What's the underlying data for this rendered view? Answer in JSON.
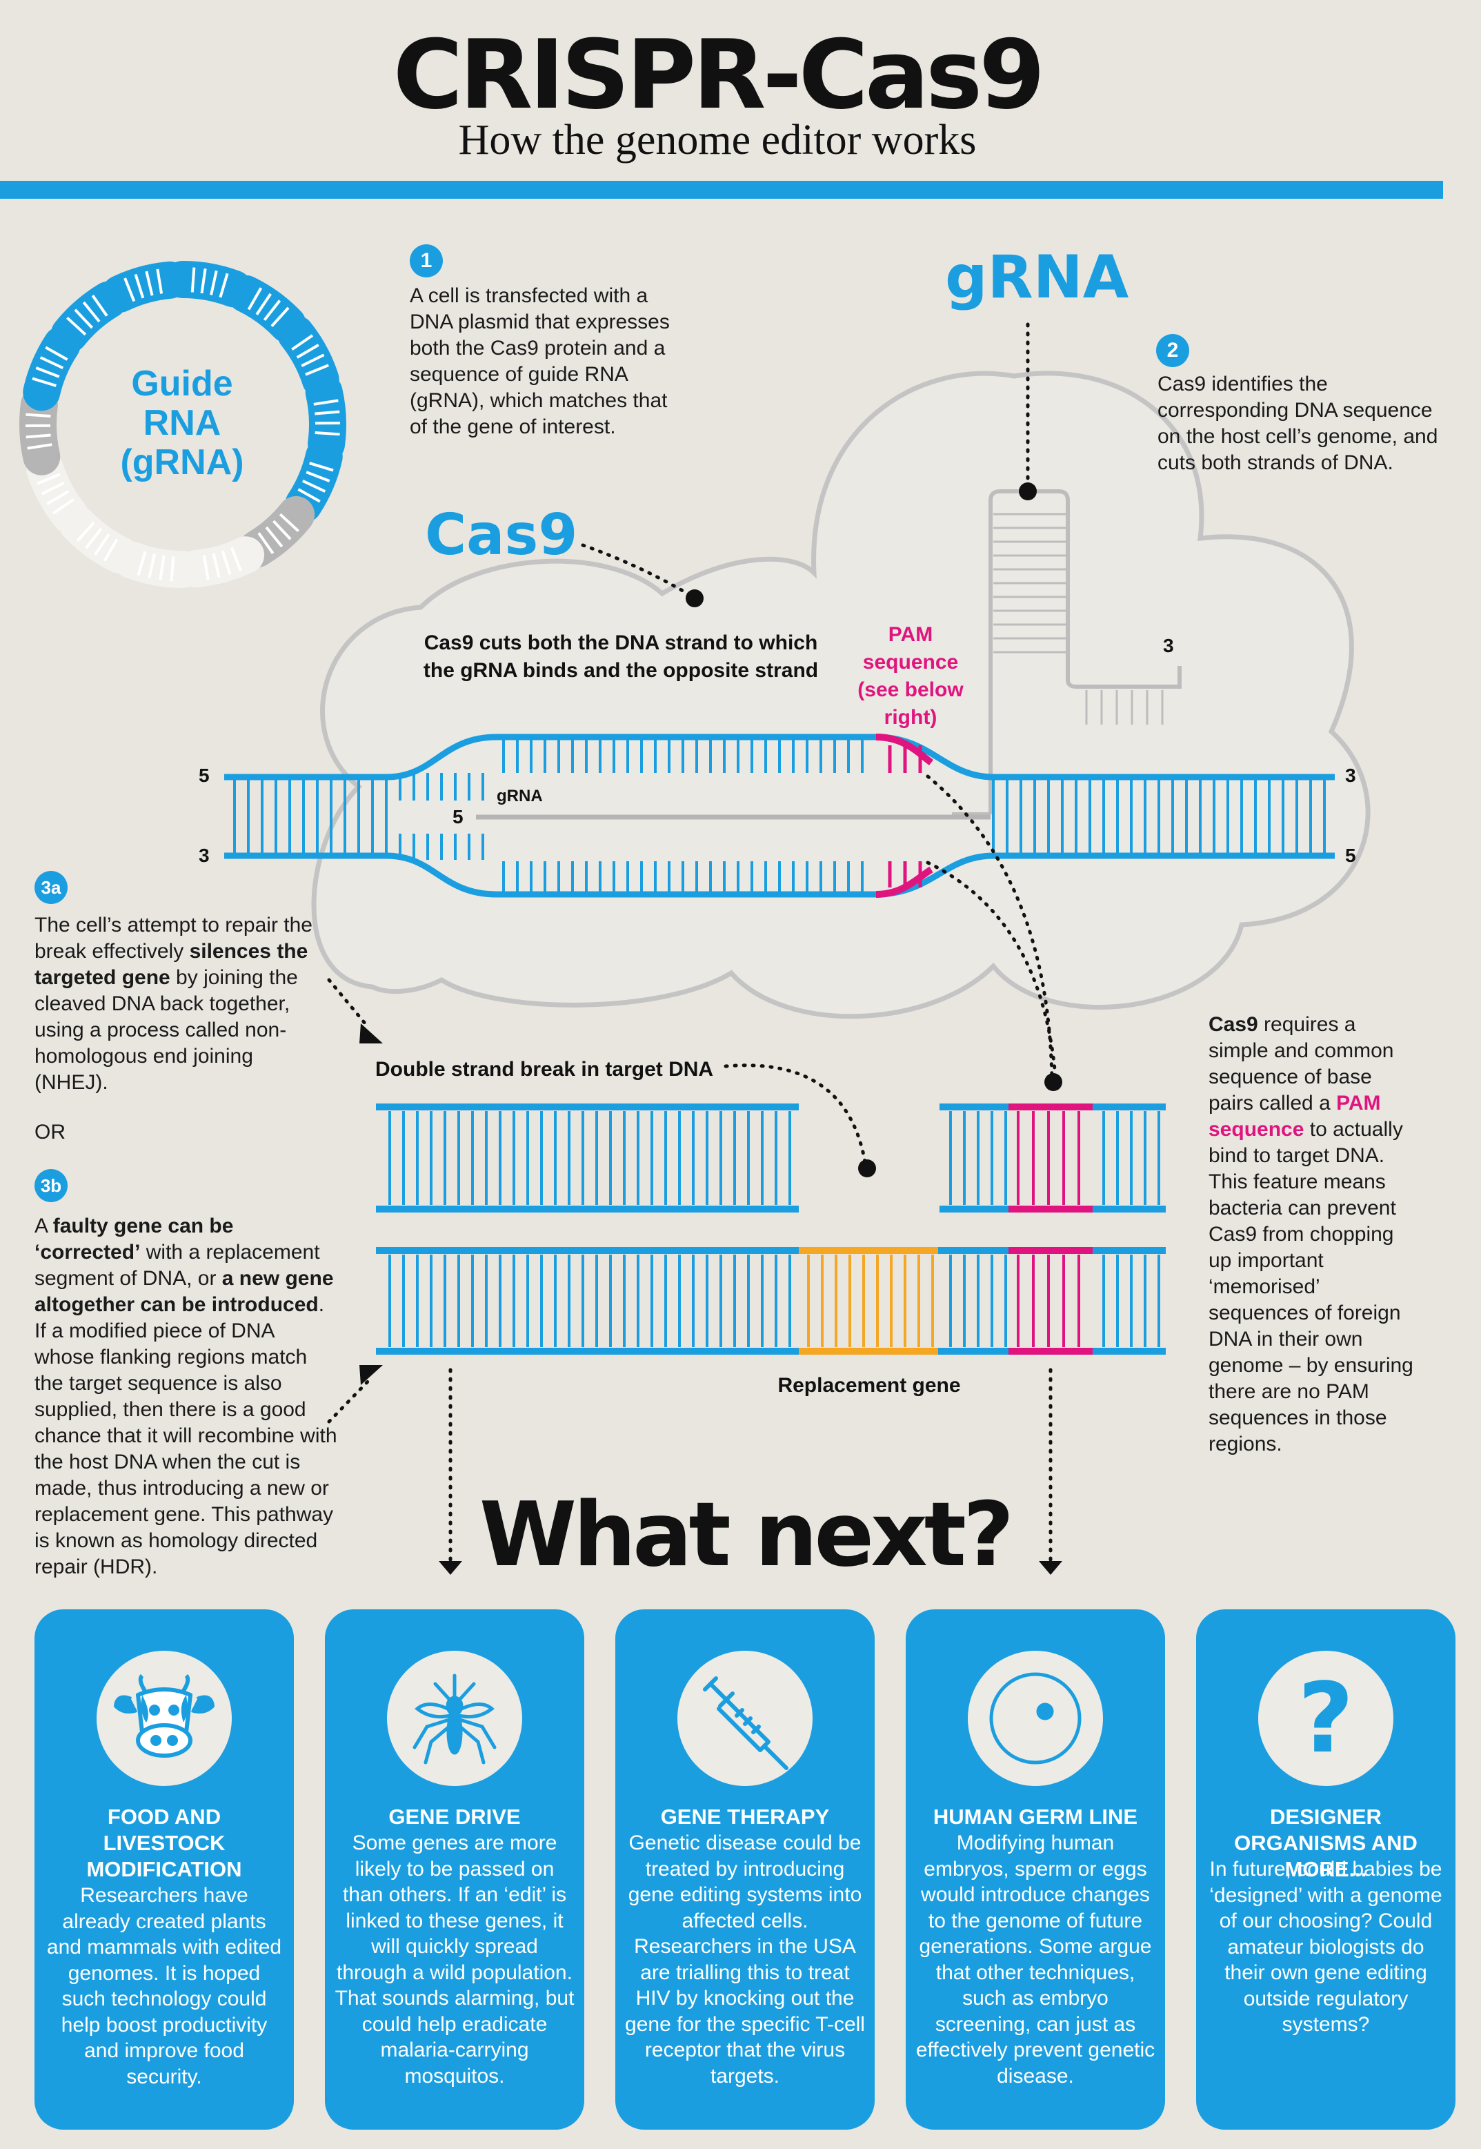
{
  "header": {
    "title": "CRISPR-Cas9",
    "subtitle": "How the genome editor works"
  },
  "plasmid": {
    "label": "Guide RNA (gRNA)"
  },
  "steps": {
    "s1": {
      "badge": "1",
      "text": "A cell is transfected with a DNA plasmid that expresses both the Cas9 protein and a sequence of guide RNA (gRNA), which matches that of the gene of interest."
    },
    "s2": {
      "badge": "2",
      "text": "Cas9 identifies the corresponding DNA sequence on the host cell’s genome, and cuts both strands of DNA."
    },
    "s3a": {
      "badge": "3a",
      "t1": "The cell’s attempt to repair the break effectively ",
      "b1": "silences the targeted gene",
      "t2": " by joining the cleaved DNA back together, using a process called non-homologous end joining (NHEJ)."
    },
    "or": "OR",
    "s3b": {
      "badge": "3b",
      "t1": "A ",
      "b1": "faulty gene can be ‘corrected’",
      "t2": " with a replacement segment of DNA, or ",
      "b2": "a new gene altogether can be introduced",
      "t3": ". If a modified piece of DNA whose flanking regions match the target sequence is also supplied, then there is a good chance that it will recombine with the host DNA when the cut is made, thus introducing a new or replacement gene. This pathway is known as homology directed repair (HDR)."
    },
    "pam_note": {
      "b1": "Cas9",
      "t1": " requires a simple and common sequence of base pairs called a ",
      "p1": "PAM sequence",
      "t2": " to actually bind to target DNA. This feature means bacteria can prevent Cas9 from chopping up important ‘memorised’ sequences of foreign DNA in their own genome – by ensuring there are no PAM sequences in those regions."
    }
  },
  "diagram": {
    "grna_label": "gRNA",
    "cas9_label": "Cas9",
    "cut_label": "Cas9 cuts both the DNA strand to which the gRNA binds and the opposite strand",
    "pam_label": "PAM sequence (see below right)",
    "grna_small": "gRNA",
    "end5": "5",
    "end3": "3",
    "dsb_label": "Double strand break in target DNA",
    "replacement_label": "Replacement gene",
    "colors": {
      "blue": "#1a9ee0",
      "pink": "#e0147e",
      "orange": "#f5a623",
      "grey": "#b5b5b5"
    }
  },
  "what_next": "What next?",
  "cards": [
    {
      "icon": "cow-icon",
      "title": "FOOD AND LIVESTOCK MODIFICATION",
      "body": "Researchers have already created plants and mammals with edited genomes. It is hoped such technology could help boost productivity and improve food security."
    },
    {
      "icon": "mosquito-icon",
      "title": "GENE DRIVE",
      "body": "Some genes are more likely to be passed on than others. If an ‘edit’ is linked to these genes, it will quickly spread through a wild population. That sounds alarming, but could help eradicate malaria-carrying mosquitos."
    },
    {
      "icon": "syringe-icon",
      "title": "GENE THERAPY",
      "body": "Genetic disease could be treated by introducing gene editing systems into affected cells. Researchers in the USA are trialling this to treat HIV by knocking out the gene for the specific T-cell receptor that the virus targets."
    },
    {
      "icon": "cell-icon",
      "title": "HUMAN GERM LINE",
      "body": "Modifying human embryos, sperm or eggs would introduce changes to the genome of future generations. Some argue that other techniques, such as embryo screening, can just as effectively prevent genetic disease."
    },
    {
      "icon": "question-icon",
      "title": "DESIGNER ORGANISMS AND MORE...",
      "body": "In future, could babies be ‘designed’ with a genome of our choosing? Could amateur biologists do their own gene editing outside regulatory systems?"
    }
  ]
}
